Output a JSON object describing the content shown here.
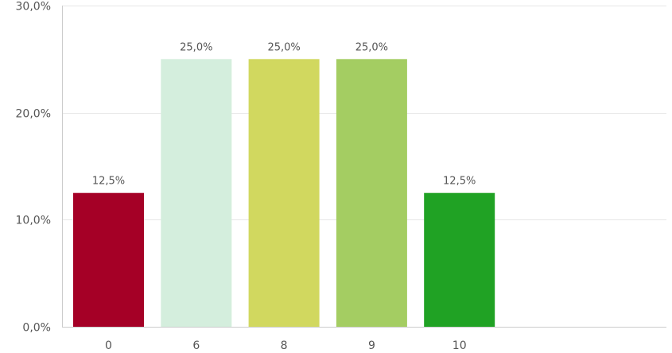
{
  "chart_data": {
    "type": "bar",
    "title": "",
    "xlabel": "",
    "ylabel": "",
    "categories": [
      "0",
      "6",
      "8",
      "9",
      "10"
    ],
    "values": [
      12.5,
      25.0,
      25.0,
      25.0,
      12.5
    ],
    "value_labels": [
      "12,5%",
      "25,0%",
      "25,0%",
      "25,0%",
      "12,5%"
    ],
    "bar_colors": [
      "#a50026",
      "#d4eedd",
      "#d1d85f",
      "#a4cd62",
      "#20a224"
    ],
    "ylim": [
      0,
      30
    ],
    "yticks": [
      0,
      10,
      20,
      30
    ],
    "ytick_labels": [
      "0,0%",
      "10,0%",
      "20,0%",
      "30,0%"
    ],
    "grid": true,
    "legend": "none"
  }
}
